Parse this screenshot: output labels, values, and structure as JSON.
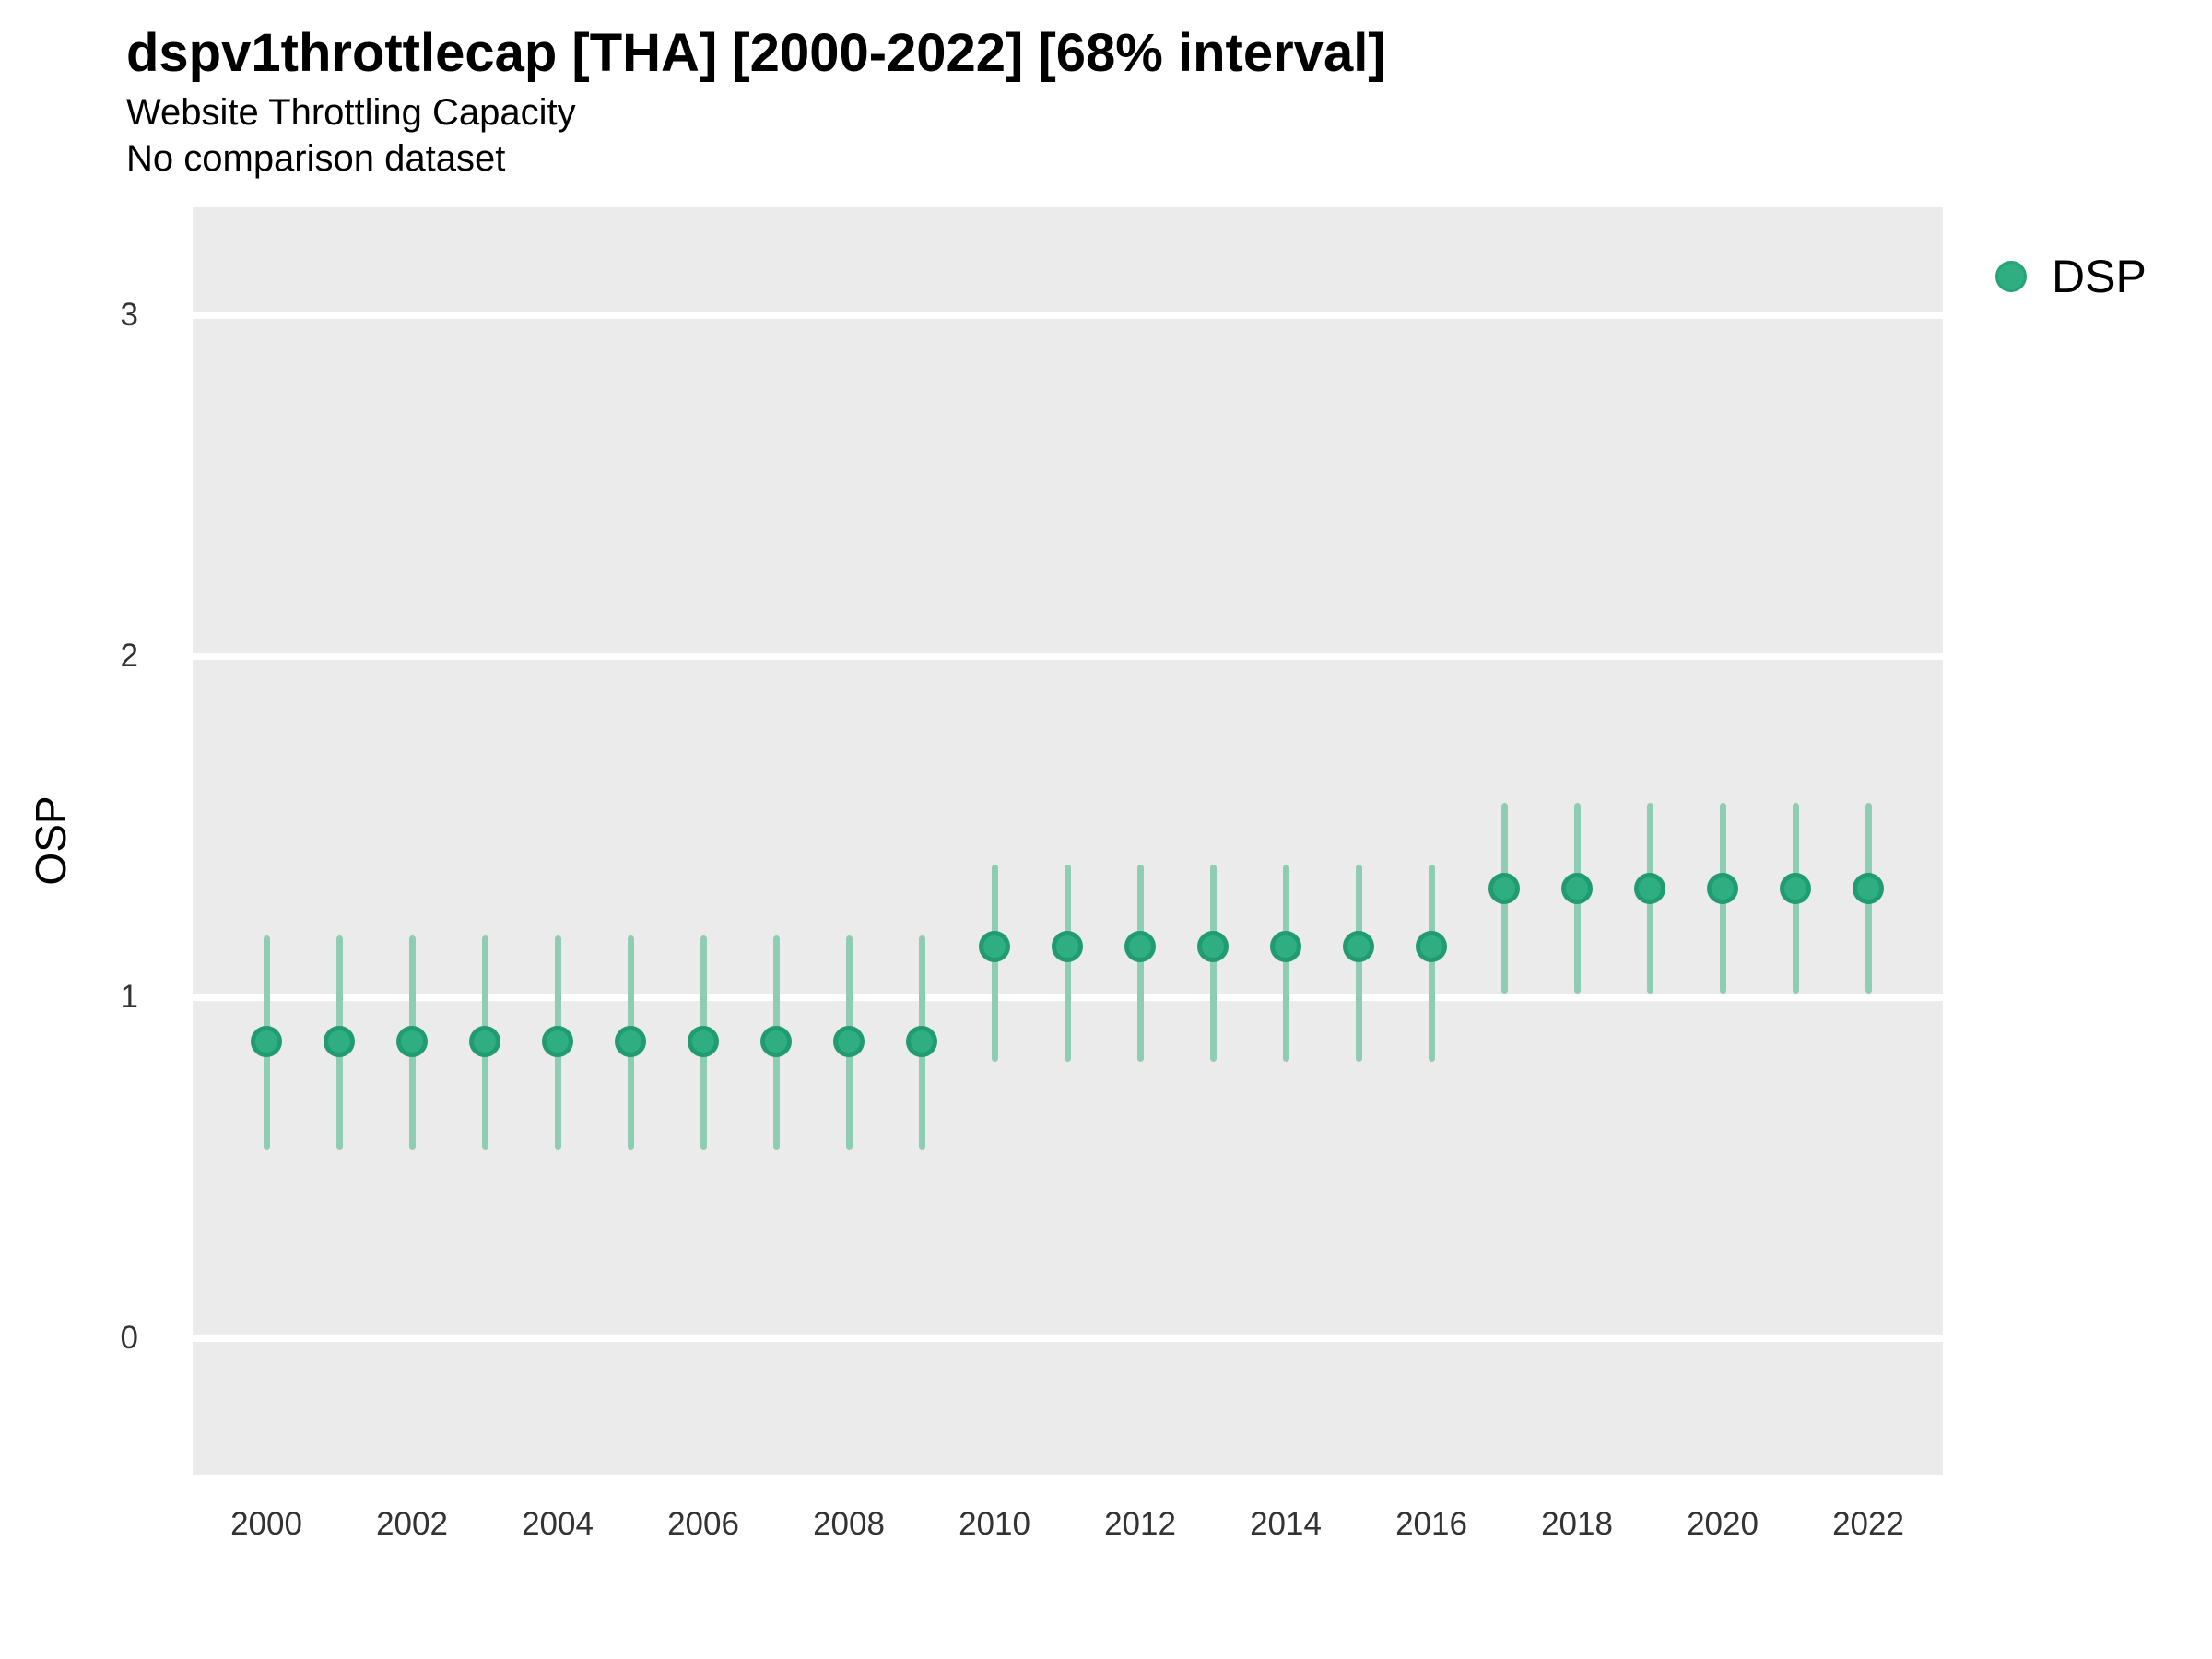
{
  "chart_data": {
    "type": "pointrange",
    "title": "dspv1throttlecap [THA] [2000-2022] [68% interval]",
    "subtitle": "Website Throttling Capacity",
    "note": "No comparison dataset",
    "xlabel": "",
    "ylabel": "OSP",
    "interval_label": "68% interval",
    "grid": true,
    "legend_position": "right-top",
    "legend": [
      {
        "name": "DSP",
        "color": "#2FAE81"
      }
    ],
    "y_ticks": [
      0,
      1,
      2,
      3
    ],
    "y_domain": [
      -0.4,
      3.32
    ],
    "x_tick_labels": [
      2000,
      2002,
      2004,
      2006,
      2008,
      2010,
      2012,
      2014,
      2016,
      2018,
      2020,
      2022
    ],
    "colors": {
      "panel_bg": "#EBEBEB",
      "gridline": "#FFFFFF",
      "interval_bar": "#8FCCB4",
      "point_fill": "#2FAE81",
      "point_ring": "#219C72",
      "tick_text": "#333333",
      "title_text": "#000000"
    },
    "series": [
      {
        "name": "DSP",
        "points": [
          {
            "year": 2000,
            "mid": 0.87,
            "lo": 0.55,
            "hi": 1.18
          },
          {
            "year": 2001,
            "mid": 0.87,
            "lo": 0.55,
            "hi": 1.18
          },
          {
            "year": 2002,
            "mid": 0.87,
            "lo": 0.55,
            "hi": 1.18
          },
          {
            "year": 2003,
            "mid": 0.87,
            "lo": 0.55,
            "hi": 1.18
          },
          {
            "year": 2004,
            "mid": 0.87,
            "lo": 0.55,
            "hi": 1.18
          },
          {
            "year": 2005,
            "mid": 0.87,
            "lo": 0.55,
            "hi": 1.18
          },
          {
            "year": 2006,
            "mid": 0.87,
            "lo": 0.55,
            "hi": 1.18
          },
          {
            "year": 2007,
            "mid": 0.87,
            "lo": 0.55,
            "hi": 1.18
          },
          {
            "year": 2008,
            "mid": 0.87,
            "lo": 0.55,
            "hi": 1.18
          },
          {
            "year": 2009,
            "mid": 0.87,
            "lo": 0.55,
            "hi": 1.18
          },
          {
            "year": 2010,
            "mid": 1.15,
            "lo": 0.81,
            "hi": 1.39
          },
          {
            "year": 2011,
            "mid": 1.15,
            "lo": 0.81,
            "hi": 1.39
          },
          {
            "year": 2012,
            "mid": 1.15,
            "lo": 0.81,
            "hi": 1.39
          },
          {
            "year": 2013,
            "mid": 1.15,
            "lo": 0.81,
            "hi": 1.39
          },
          {
            "year": 2014,
            "mid": 1.15,
            "lo": 0.81,
            "hi": 1.39
          },
          {
            "year": 2015,
            "mid": 1.15,
            "lo": 0.81,
            "hi": 1.39
          },
          {
            "year": 2016,
            "mid": 1.15,
            "lo": 0.81,
            "hi": 1.39
          },
          {
            "year": 2017,
            "mid": 1.32,
            "lo": 1.01,
            "hi": 1.57
          },
          {
            "year": 2018,
            "mid": 1.32,
            "lo": 1.01,
            "hi": 1.57
          },
          {
            "year": 2019,
            "mid": 1.32,
            "lo": 1.01,
            "hi": 1.57
          },
          {
            "year": 2020,
            "mid": 1.32,
            "lo": 1.01,
            "hi": 1.57
          },
          {
            "year": 2021,
            "mid": 1.32,
            "lo": 1.01,
            "hi": 1.57
          },
          {
            "year": 2022,
            "mid": 1.32,
            "lo": 1.01,
            "hi": 1.57
          }
        ]
      }
    ]
  }
}
